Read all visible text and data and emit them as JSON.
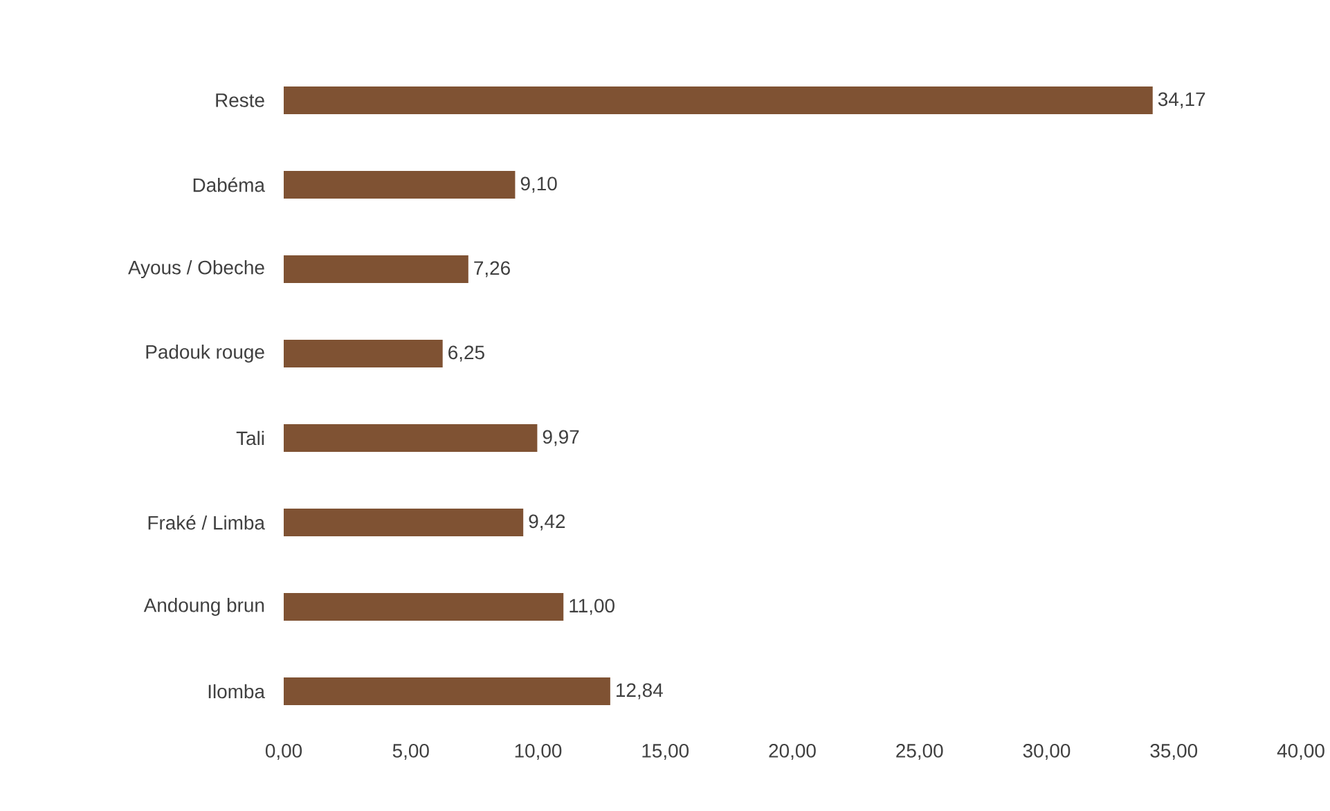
{
  "chart_data": {
    "type": "bar",
    "orientation": "horizontal",
    "categories": [
      "Reste",
      "Dabéma",
      "Ayous / Obeche",
      "Padouk rouge",
      "Tali",
      "Fraké / Limba",
      "Andoung brun",
      "Ilomba"
    ],
    "values": [
      34.17,
      9.1,
      7.26,
      6.25,
      9.97,
      9.42,
      11.0,
      12.84
    ],
    "value_labels": [
      "34,17",
      "9,10",
      "7,26",
      "6,25",
      "9,97",
      "9,42",
      "11,00",
      "12,84"
    ],
    "color": "#7f5233",
    "xlim": [
      0,
      40
    ],
    "xticks": [
      {
        "value": 0,
        "label": "0,00"
      },
      {
        "value": 5,
        "label": "5,00"
      },
      {
        "value": 10,
        "label": "10,00"
      },
      {
        "value": 15,
        "label": "15,00"
      },
      {
        "value": 20,
        "label": "20,00"
      },
      {
        "value": 25,
        "label": "25,00"
      },
      {
        "value": 30,
        "label": "30,00"
      },
      {
        "value": 35,
        "label": "35,00"
      },
      {
        "value": 40,
        "label": "40,00"
      }
    ]
  }
}
